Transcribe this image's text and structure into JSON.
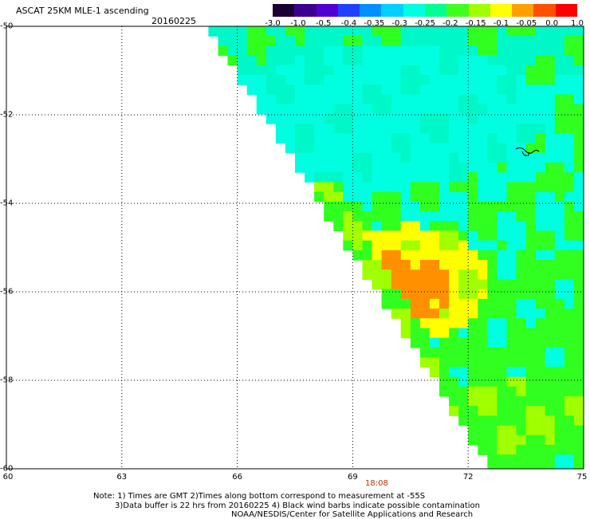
{
  "title": "ASCAT 25KM MLE-1 ascending",
  "date": "20160225",
  "colorbar": {
    "tick_labels": [
      "-3.0",
      "-1.0",
      "-0.5",
      "-0.4",
      "-0.35",
      "-0.3",
      "-0.25",
      "-0.2",
      "-0.15",
      "-0.1",
      "-0.05",
      "0.0",
      "1.0"
    ],
    "colors": [
      "#1a0030",
      "#3c0090",
      "#5000d0",
      "#2040ff",
      "#0090ff",
      "#00d0ff",
      "#00ffe0",
      "#00ff90",
      "#40ff20",
      "#a0ff00",
      "#ffff00",
      "#ffa000",
      "#ff5000",
      "#ff0000"
    ]
  },
  "map": {
    "lon_range": [
      60,
      75
    ],
    "lat_range": [
      -60,
      -50
    ],
    "lon_ticks": [
      "60",
      "63",
      "66",
      "69",
      "72",
      "75"
    ],
    "lat_ticks": [
      "-50",
      "-52",
      "-54",
      "-56",
      "-58",
      "-60"
    ],
    "swath_edge": [
      [
        65.4,
        -50.0
      ],
      [
        72.8,
        -60.0
      ]
    ],
    "field_colors": {
      "cyan": "#00ffe0",
      "aqua": "#00f8c8",
      "green": "#30ff20",
      "lime": "#a0ff00",
      "yellow": "#ffff00",
      "orange": "#ff9000",
      "blue": "#00a8ff"
    },
    "field_zones": {
      "orange_core": {
        "center": [
          70.3,
          -55.9
        ],
        "radius_deg": [
          1.3,
          0.8
        ]
      },
      "yellow_ring": {
        "center": [
          70.5,
          -55.8
        ],
        "radius_deg": [
          2.0,
          1.3
        ]
      },
      "green_band_west": {
        "center": [
          67.5,
          -54.3
        ],
        "radius_deg": [
          2.0,
          0.5
        ]
      },
      "green_band_south": {
        "center": [
          73.0,
          -58.8
        ],
        "radius_deg": [
          2.2,
          0.8
        ]
      },
      "cyan_north": {
        "center": [
          70.0,
          -52.0
        ],
        "radius_deg": [
          4.0,
          1.6
        ]
      }
    }
  },
  "pass_time": "18:08",
  "notes": [
    "Note: 1) Times are GMT 2)Times along bottom correspond to measurement at -55S",
    "3)Data buffer is 22 hrs from 20160225 4) Black wind barbs indicate possible contamination",
    "NOAA/NESDIS/Center for Satellite Applications and Research"
  ]
}
